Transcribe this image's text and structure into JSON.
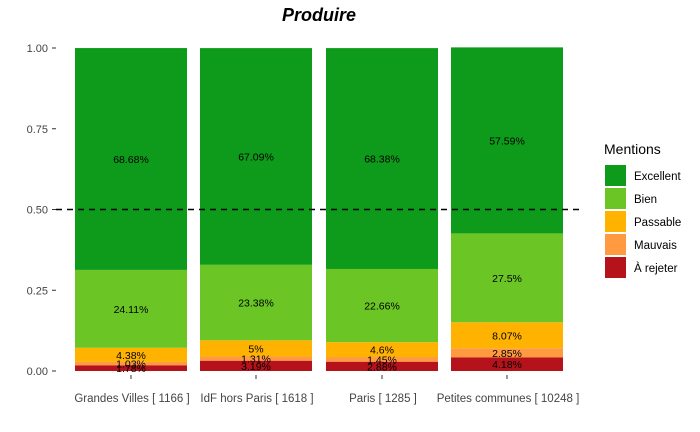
{
  "chart_data": {
    "type": "bar",
    "stacked": true,
    "title": "Produire",
    "ylim": [
      0,
      1
    ],
    "yticks": [
      "0.00",
      "0.25",
      "0.50",
      "0.75",
      "1.00"
    ],
    "reference_line": 0.5,
    "categories": [
      "Grandes Villes  [ 1166 ]",
      "IdF hors Paris  [ 1618 ]",
      "Paris  [ 1285 ]",
      "Petites communes  [ 10248 ]"
    ],
    "legend_title": "Mentions",
    "series": [
      {
        "name": "À rejeter",
        "color": "#B5121B",
        "values": [
          0.0178,
          0.0319,
          0.0288,
          0.0418
        ],
        "labels": [
          "1.78%",
          "3.19%",
          "2.88%",
          "4.18%"
        ]
      },
      {
        "name": "Mauvais",
        "color": "#FF9A40",
        "values": [
          0.0103,
          0.0131,
          0.0145,
          0.0285
        ],
        "labels": [
          "1.03%",
          "1.31%",
          "1.45%",
          "2.85%"
        ]
      },
      {
        "name": "Passable",
        "color": "#FFB300",
        "values": [
          0.0438,
          0.05,
          0.046,
          0.0807
        ],
        "labels": [
          "4.38%",
          "5%",
          "4.6%",
          "8.07%"
        ]
      },
      {
        "name": "Bien",
        "color": "#6BC524",
        "values": [
          0.2411,
          0.2338,
          0.2266,
          0.275
        ],
        "labels": [
          "24.11%",
          "23.38%",
          "22.66%",
          "27.5%"
        ]
      },
      {
        "name": "Excellent",
        "color": "#0E9A1A",
        "values": [
          0.6868,
          0.6709,
          0.6838,
          0.5759
        ],
        "labels": [
          "68.68%",
          "67.09%",
          "68.38%",
          "57.59%"
        ]
      }
    ],
    "legend_order": [
      "Excellent",
      "Bien",
      "Passable",
      "Mauvais",
      "À rejeter"
    ]
  }
}
